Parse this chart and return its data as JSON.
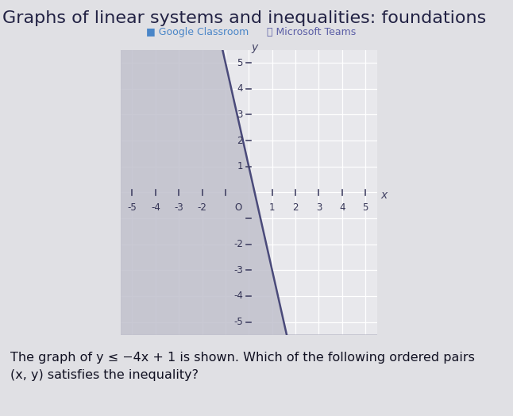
{
  "title": "Graphs of linear systems and inequalities: foundations",
  "subtitle_google": "Google Classroom",
  "subtitle_teams": "Microsoft Teams",
  "question": "The graph of y ≤ −4x + 1 is shown. Which of the following ordered pairs\n(x, y) satisfies the inequality?",
  "slope": -4,
  "intercept": 1,
  "xlim": [
    -5.5,
    5.5
  ],
  "ylim": [
    -5.5,
    5.5
  ],
  "shade_color": "#c0c0cc",
  "shade_alpha": 0.85,
  "line_color": "#4a4a7a",
  "line_width": 1.8,
  "outer_bg": "#e0e0e4",
  "graph_bg": "#e8e8ec",
  "grid_color": "#ffffff",
  "axis_color": "#444466",
  "title_color": "#222244",
  "title_fontsize": 16,
  "question_fontsize": 11.5,
  "google_color": "#4a86c8",
  "teams_color": "#5b5ea6"
}
